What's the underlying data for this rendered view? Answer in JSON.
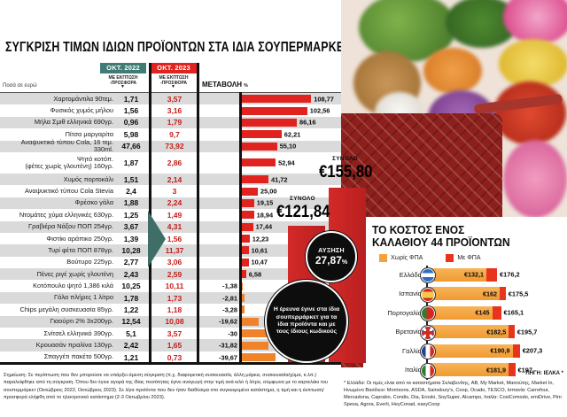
{
  "page": {
    "amounts_note": "Ποσά σε ευρώ",
    "source": "ΠΗΓΗ: ΙΕΛΚΑ *",
    "footnote_left": "Σημείωση: Σε περίπτωση που δεν μπορούσε να υπάρξει άμεση σύγκριση (π.χ. διαφορετική συσκευασία, άλλη μάρκα, συσκευασία/χύμα, κ.λπ.) παραλείφθηκε από τη σύγκριση. Όπου δεν έγινε αγορά της ίδιας ποσότητας έγινε αναγωγή στην τιμή ανά κιλό ή λίτρο, σύμφωνα με το καρτελάκι του σουπερμάρκετ (Οκτώβριος 2022, Οκτώβριος 2023). Σε λίγα προϊόντα που δεν ήταν διαθέσιμα στο συγκεκριμένο κατάστημα, η τιμή και η έκπτωση/προσφορά ελήφθη από το ηλεκτρονικό κατάστημα (2-3 Οκτωβρίου 2023).",
    "footnote_right": "* Ελλάδα: Οι τιμές είναι από τα καταστήματα Σκλαβενίτης, ΑΒ, My Market, Μασούτης, Market In, Ηνωμένο Βασίλειο: Morrisons, ASDA, Sainsbury's, Coop, Ocado, TESCO, Ισπανία: Carrefour, Mercadona, Caprabo, Condis, Dia, Eroski, SoySuper, Alcampo, Ιταλία: CosiComodo, emiDrive, Pim Spesa, Agora, Everli, HeyConad, easyCoop"
  },
  "chart_data": [
    {
      "type": "bar",
      "title": "ΣΥΓΚΡΙΣΗ ΤΙΜΩΝ ΙΔΙΩΝ ΠΡΟΪΟΝΤΩΝ ΣΤΑ ΙΔΙΑ ΣΟΥΠΕΡΜΑΡΚΕΤ",
      "xlabel": "ΜΕΤΑΒΟΛΗ",
      "x_unit": "%",
      "col_2022_label": "ΟΚΤ. 2022",
      "col_2023_label": "ΟΚΤ. 2023",
      "col_sub_label": "ΜΕ ΕΚΠΤΩΣΗ\n-ΠΡΟΣΦΟΡΑ",
      "rows": [
        {
          "label": "Χαρτομάντιλα 90τεμ.",
          "oct2022": "1,71",
          "oct2023": "3,57",
          "pct": 108.77,
          "pct_display": "108,77"
        },
        {
          "label": "Φυσικός χυμός μήλου",
          "oct2022": "1,56",
          "oct2023": "3,16",
          "pct": 102.56,
          "pct_display": "102,56"
        },
        {
          "label": "Μήλα Σμιθ ελληνικά 690γρ.",
          "oct2022": "0,96",
          "oct2023": "1,79",
          "pct": 86.16,
          "pct_display": "86,16"
        },
        {
          "label": "Πίτσα μαργαρίτα",
          "oct2022": "5,98",
          "oct2023": "9,7",
          "pct": 62.21,
          "pct_display": "62,21"
        },
        {
          "label": "Αναψυκτικό τύπου Cola, 16 τεμ. 330ml.",
          "oct2022": "47,66",
          "oct2023": "73,92",
          "pct": 55.1,
          "pct_display": "55,10"
        },
        {
          "label": "Ψητό κοτόπ.\n(φέτες χωρίς γλουτένη) 160γρ.",
          "oct2022": "1,87",
          "oct2023": "2,86",
          "pct": 52.94,
          "pct_display": "52,94",
          "tall": true
        },
        {
          "label": "Χυμός πορτοκάλι",
          "oct2022": "1,51",
          "oct2023": "2,14",
          "pct": 41.72,
          "pct_display": "41,72"
        },
        {
          "label": "Αναψυκτικό τύπου Cola Stevia",
          "oct2022": "2,4",
          "oct2023": "3",
          "pct": 25.0,
          "pct_display": "25,00"
        },
        {
          "label": "Φρέσκο γάλα",
          "oct2022": "1,88",
          "oct2023": "2,24",
          "pct": 19.15,
          "pct_display": "19,15"
        },
        {
          "label": "Ντομάτες χύμα ελληνικές 630γρ.",
          "oct2022": "1,25",
          "oct2023": "1,49",
          "pct": 18.94,
          "pct_display": "18,94"
        },
        {
          "label": "Γραβιέρα Νάξου ΠΟΠ 254γρ.",
          "oct2022": "3,67",
          "oct2023": "4,31",
          "pct": 17.44,
          "pct_display": "17,44"
        },
        {
          "label": "Φιστίκι αράπικο 250γρ.",
          "oct2022": "1,39",
          "oct2023": "1,56",
          "pct": 12.23,
          "pct_display": "12,23"
        },
        {
          "label": "Τυρί φέτα ΠΟΠ 878γρ.",
          "oct2022": "10,28",
          "oct2023": "11,37",
          "pct": 10.61,
          "pct_display": "10,61"
        },
        {
          "label": "Βούτυρο 225γρ.",
          "oct2022": "2,77",
          "oct2023": "3,06",
          "pct": 10.47,
          "pct_display": "10,47"
        },
        {
          "label": "Πένες ριγέ χωρίς γλουτένη",
          "oct2022": "2,43",
          "oct2023": "2,59",
          "pct": 6.58,
          "pct_display": "6,58"
        },
        {
          "label": "Κοτόπουλο ψητό 1,386 κιλά",
          "oct2022": "10,25",
          "oct2023": "10,11",
          "pct": -1.38,
          "pct_display": "-1,38"
        },
        {
          "label": "Γάλα πλήρες 1 λίτρο",
          "oct2022": "1,78",
          "oct2023": "1,73",
          "pct": -2.81,
          "pct_display": "-2,81"
        },
        {
          "label": "Chips μεγάλη συσκευασία 85γρ.",
          "oct2022": "1,22",
          "oct2023": "1,18",
          "pct": -3.28,
          "pct_display": "-3,28"
        },
        {
          "label": "Γιαούρτι 2% 3x200γρ.",
          "oct2022": "12,54",
          "oct2023": "10,08",
          "pct": -19.62,
          "pct_display": "-19,62"
        },
        {
          "label": "Σνίτσελ ελληνικό 390γρ.",
          "oct2022": "5,1",
          "oct2023": "3,57",
          "pct": -30,
          "pct_display": "-30"
        },
        {
          "label": "Κρουασάν πραλίνα 130γρ.",
          "oct2022": "2,42",
          "oct2023": "1,65",
          "pct": -31.82,
          "pct_display": "-31,82"
        },
        {
          "label": "Σπαγγέτι πακέτο 500γρ.",
          "oct2022": "1,21",
          "oct2023": "0,73",
          "pct": -39.67,
          "pct_display": "-39,67"
        }
      ],
      "total_2022": {
        "label": "ΣΥΝΟΛΟ",
        "value": "€121,84"
      },
      "total_2023": {
        "label": "ΣΥΝΟΛΟ",
        "value": "€155,80"
      },
      "increase": {
        "label": "ΑΥΞΗΣΗ",
        "value": "27,87",
        "unit": "%"
      },
      "note": "Η έρευνα έγινε στα ίδια σουπερμάρκετ για τα ίδια προϊόντα και με τους ίδιους κωδικούς",
      "colors": {
        "bar_up": "#E0231E",
        "bar_down": "#F0832A",
        "header_2022": "#3E7C74",
        "header_2023": "#E0231E",
        "total_column": "#C9252B"
      }
    },
    {
      "type": "bar",
      "title": "ΤΟ ΚΟΣΤΟΣ ΕΝΟΣ\nΚΑΛΑΘΙΟΥ 44 ΠΡΟΪΟΝΤΩΝ",
      "legend": [
        {
          "label": "Χωρίς ΦΠΑ",
          "color": "#F5A23C"
        },
        {
          "label": "Με ΦΠΑ",
          "color": "#E8341C"
        }
      ],
      "rows": [
        {
          "country": "Ελλάδα",
          "flag": "greece",
          "without_vat": 132.1,
          "without_vat_display": "€132,1",
          "with_vat": 176.2,
          "with_vat_display": "€176,2"
        },
        {
          "country": "Ισπανία",
          "flag": "spain",
          "without_vat": 162,
          "without_vat_display": "€162",
          "with_vat": 175.5,
          "with_vat_display": "€175,5"
        },
        {
          "country": "Πορτογαλία",
          "flag": "portugal",
          "without_vat": 145,
          "without_vat_display": "€145",
          "with_vat": 165.1,
          "with_vat_display": "€165,1"
        },
        {
          "country": "Βρετανία",
          "flag": "uk",
          "without_vat": 182.5,
          "without_vat_display": "€182,5",
          "with_vat": 195.7,
          "with_vat_display": "€195,7"
        },
        {
          "country": "Γαλλία",
          "flag": "france",
          "without_vat": 190.9,
          "without_vat_display": "€190,9",
          "with_vat": 207.3,
          "with_vat_display": "€207,3"
        },
        {
          "country": "Ιταλία",
          "flag": "italy",
          "without_vat": 181.9,
          "without_vat_display": "€181,9",
          "with_vat": 197,
          "with_vat_display": "€197"
        }
      ]
    }
  ]
}
